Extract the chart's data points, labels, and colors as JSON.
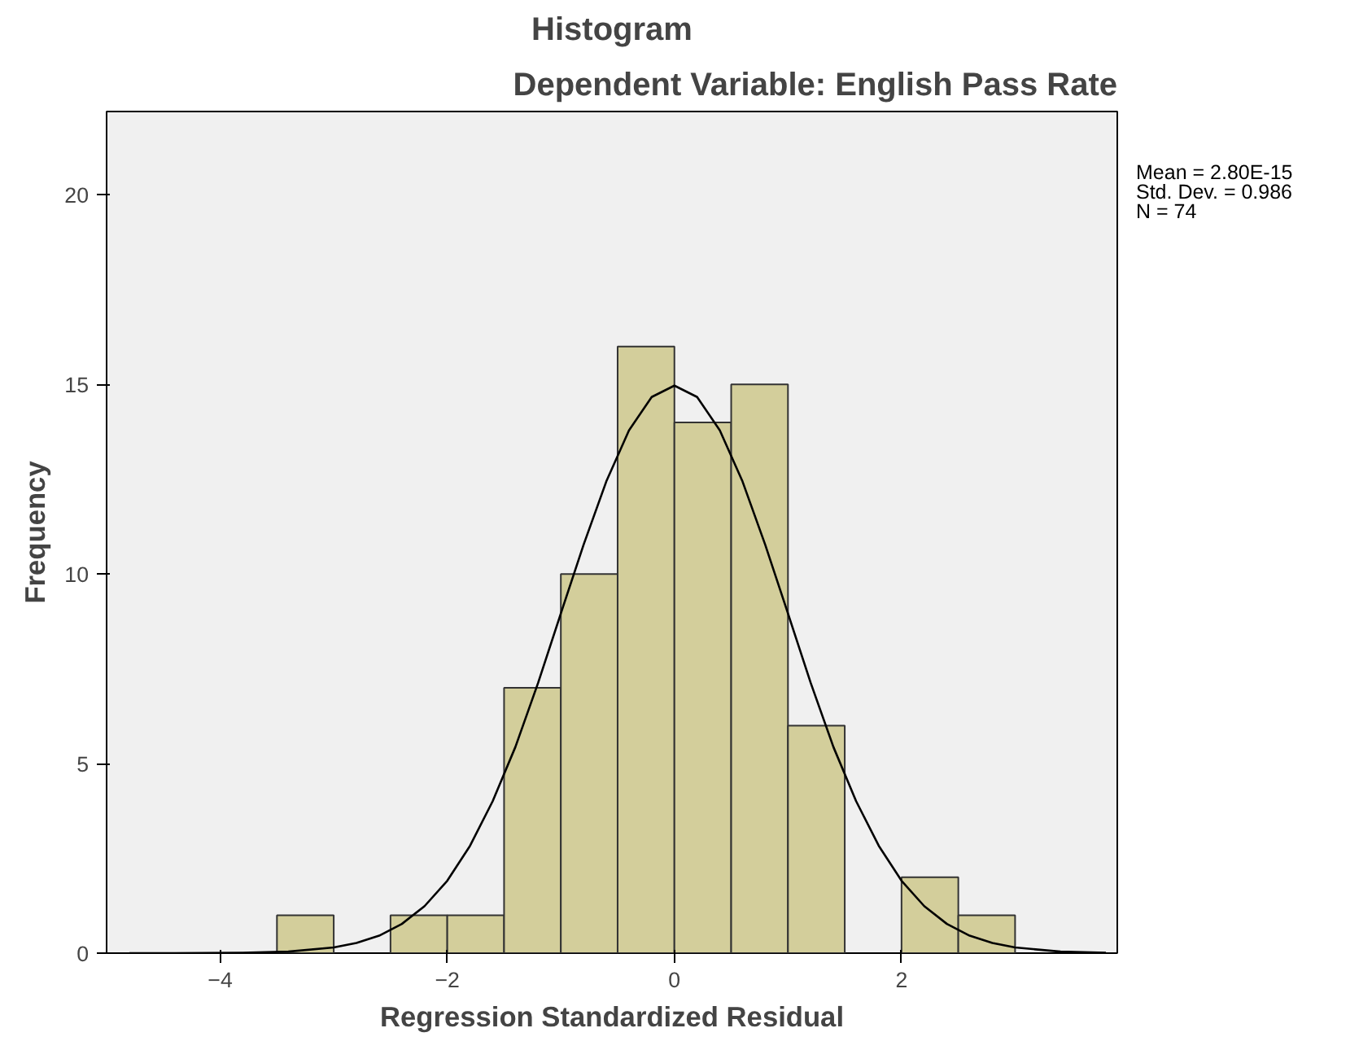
{
  "chart_data": {
    "type": "histogram",
    "title": "Histogram",
    "subtitle": "Dependent Variable: English Pass Rate",
    "xlabel": "Regression Standardized Residual",
    "ylabel": "Frequency",
    "bins": [
      -3.5,
      -3.0,
      -2.5,
      -2.0,
      -1.5,
      -1.0,
      -0.5,
      0.0,
      0.5,
      1.0,
      1.5,
      2.0,
      2.5,
      3.0
    ],
    "values": [
      1,
      0,
      1,
      1,
      7,
      10,
      16,
      14,
      15,
      6,
      0,
      2,
      1
    ],
    "color": "#d3ce9b",
    "series": [
      {
        "type": "line",
        "color": "#000000",
        "x": [
          -4.8,
          -4.4,
          -3.8,
          -3.4,
          -3.0,
          -2.8,
          -2.6,
          -2.4,
          -2.2,
          -2.0,
          -1.8,
          -1.6,
          -1.4,
          -1.2,
          -1.0,
          -0.8,
          -0.6,
          -0.4,
          -0.2,
          0.0,
          0.2,
          0.4,
          0.6,
          0.8,
          1.0,
          1.2,
          1.4,
          1.6,
          1.8,
          2.0,
          2.2,
          2.4,
          2.6,
          2.8,
          3.0,
          3.4,
          3.8
        ],
        "values": [
          0.0,
          0.0,
          0.01,
          0.04,
          0.15,
          0.27,
          0.46,
          0.77,
          1.24,
          1.91,
          2.83,
          4.01,
          5.44,
          7.13,
          8.96,
          10.77,
          12.44,
          13.79,
          14.67,
          14.97,
          14.67,
          13.79,
          12.44,
          10.77,
          8.96,
          7.13,
          5.44,
          4.01,
          2.83,
          1.91,
          1.24,
          0.77,
          0.46,
          0.27,
          0.15,
          0.04,
          0.01
        ]
      }
    ],
    "xlim": [
      -5.0,
      3.9
    ],
    "ylim": [
      0,
      22.2
    ],
    "xticks": [
      -4,
      -2,
      0,
      2
    ],
    "yticks": [
      0,
      5,
      10,
      15,
      20
    ],
    "grid": false,
    "annotations": [
      "Mean = 2.80E-15",
      "Std. Dev. = 0.986",
      "N = 74"
    ]
  }
}
